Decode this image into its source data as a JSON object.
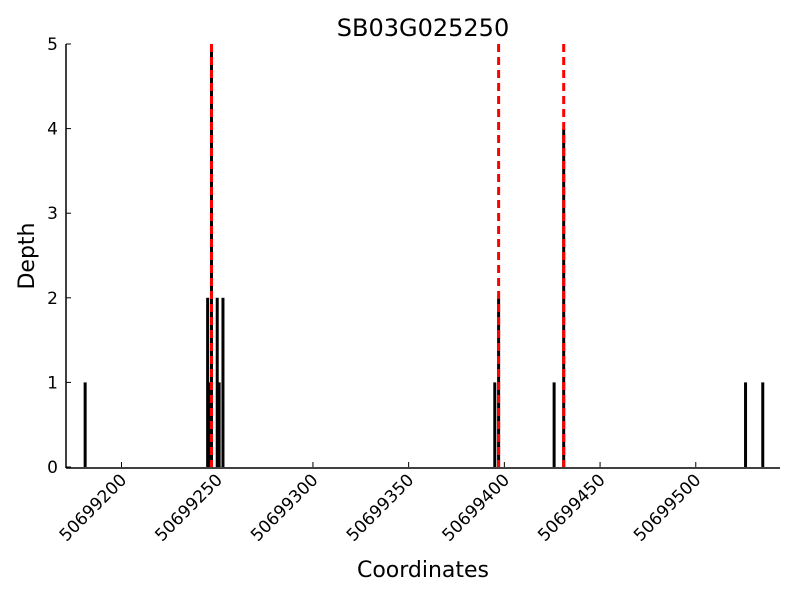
{
  "chart_data": {
    "type": "bar",
    "title": "SB03G025250",
    "x_label": "Coordinates",
    "y_label": "Depth",
    "x": [
      50699181,
      50699245,
      50699246,
      50699247,
      50699250,
      50699251,
      50699253,
      50699395,
      50699397,
      50699426,
      50699431,
      50699526,
      50699535
    ],
    "values": [
      1,
      2,
      1,
      5,
      2,
      1,
      2,
      1,
      2,
      1,
      4,
      1,
      1
    ],
    "color": "#000000",
    "vlines": [
      50699247,
      50699397,
      50699431
    ],
    "vline_color": "#ff0000",
    "xlim": [
      50699171,
      50699544
    ],
    "ylim": [
      0,
      5
    ],
    "xticks": [
      50699200,
      50699250,
      50699300,
      50699350,
      50699400,
      50699450,
      50699500
    ],
    "yticks": [
      0,
      1,
      2,
      3,
      4,
      5
    ],
    "grid": false
  }
}
